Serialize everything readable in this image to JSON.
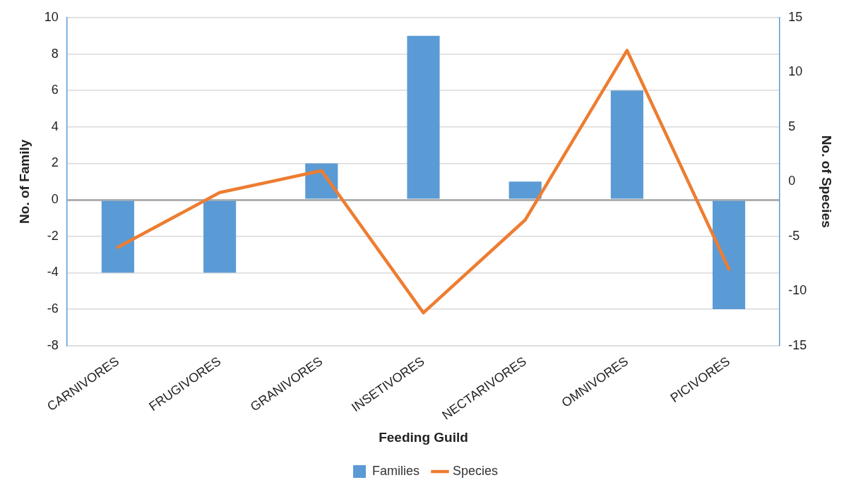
{
  "chart_data": {
    "type": "bar",
    "categories": [
      "CARNIVORES",
      "FRUGIVORES",
      "GRANIVORES",
      "INSETIVORES",
      "NECTARIVORES",
      "OMNIVORES",
      "PICIVORES"
    ],
    "series": [
      {
        "name": "Families",
        "color": "#5b9bd5",
        "values": [
          -4,
          -4,
          2,
          9,
          1,
          6,
          -6
        ]
      },
      {
        "name": "Species",
        "type": "line",
        "axis": "y2",
        "color": "#ed7d31",
        "values": [
          -6,
          -1,
          1,
          -12,
          -3.5,
          12,
          -8
        ]
      }
    ],
    "xlabel": "Feeding Guild",
    "ylabel": "No. of Family",
    "y2label": "No. of Species",
    "ylim": [
      -8,
      10
    ],
    "yticks": [
      -8,
      -6,
      -4,
      -2,
      0,
      2,
      4,
      6,
      8,
      10
    ],
    "y2lim": [
      -15,
      15
    ],
    "y2ticks": [
      -15,
      -10,
      -5,
      0,
      5,
      10,
      15
    ],
    "grid": "y",
    "legend": "bottom"
  }
}
